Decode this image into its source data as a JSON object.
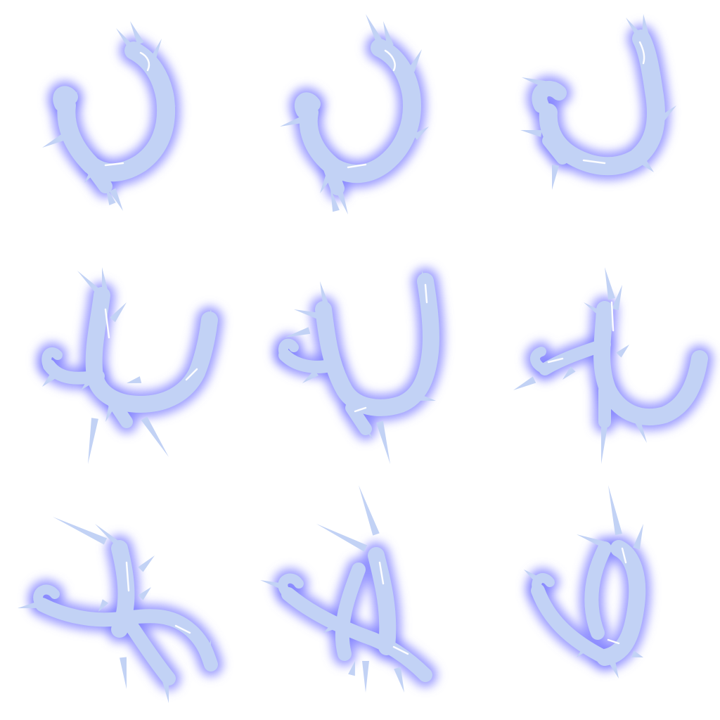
{
  "sprite_sheet": {
    "grid": {
      "rows": 3,
      "columns": 3
    },
    "colors": {
      "background": "#ffffff",
      "body": "#c2d2f5",
      "glow": "#7a7aff",
      "highlight": "#ffffff"
    },
    "frames": [
      {
        "id": "frame-1",
        "shape": "ice-hook"
      },
      {
        "id": "frame-2",
        "shape": "ice-hook"
      },
      {
        "id": "frame-3",
        "shape": "ice-hook"
      },
      {
        "id": "frame-4",
        "shape": "ice-claw"
      },
      {
        "id": "frame-5",
        "shape": "ice-claw"
      },
      {
        "id": "frame-6",
        "shape": "ice-claw"
      },
      {
        "id": "frame-7",
        "shape": "ice-rune"
      },
      {
        "id": "frame-8",
        "shape": "ice-rune"
      },
      {
        "id": "frame-9",
        "shape": "ice-rune"
      }
    ]
  }
}
